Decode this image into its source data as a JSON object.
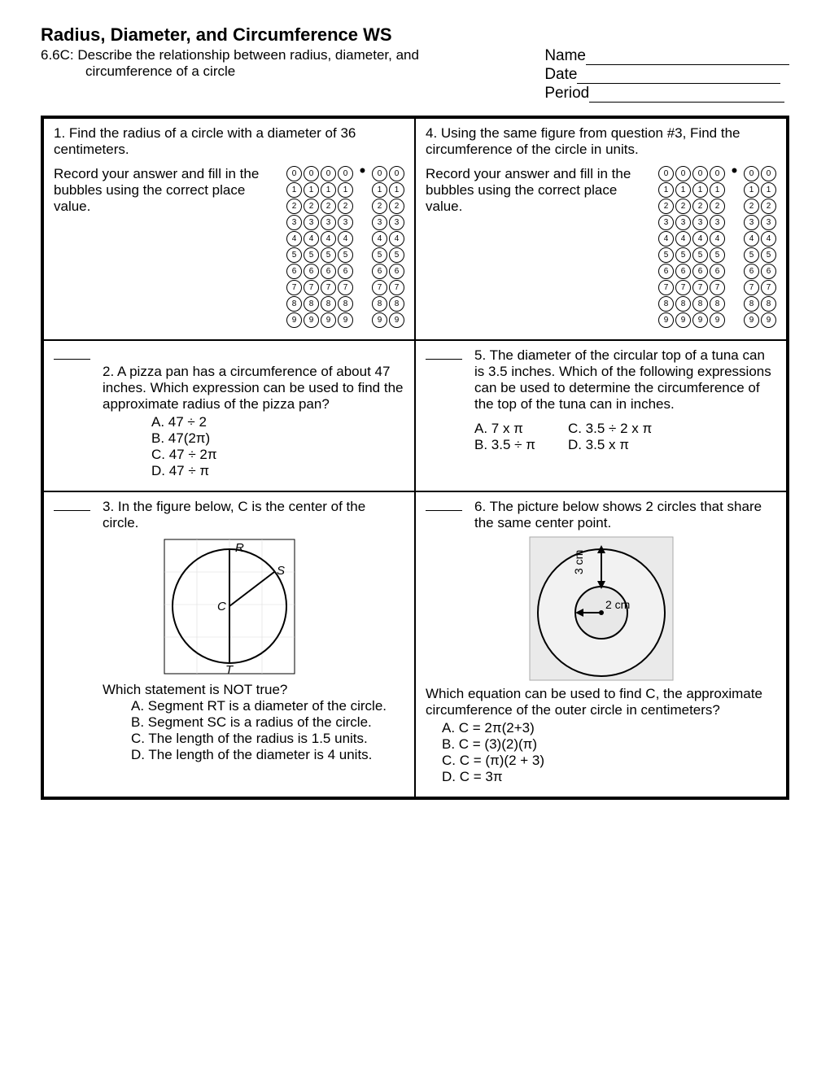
{
  "title": "Radius, Diameter, and Circumference WS",
  "standard_line1": "6.6C:  Describe the relationship between radius, diameter, and",
  "standard_line2": "circumference of a circle",
  "name_label": "Name",
  "date_label": "Date",
  "period_label": "Period",
  "q1": {
    "prompt": "1.  Find the radius of a circle with a diameter of 36 centimeters.",
    "instruction": "Record your answer and fill in the bubbles using the correct place value."
  },
  "q2": {
    "prompt": "2.  A pizza pan has a circumference of about 47 inches.  Which expression can be used to find the approximate radius of the pizza pan?",
    "a": "A.  47 ÷ 2",
    "b": "B.  47(2π)",
    "c": "C.  47 ÷ 2π",
    "d": "D.  47 ÷ π"
  },
  "q3": {
    "prompt": "3.  In the figure below, C is the center of the circle.",
    "labels": {
      "R": "R",
      "S": "S",
      "C": "C",
      "T": "T"
    },
    "follow": "Which statement is NOT true?",
    "a": "A.  Segment RT is a diameter of the circle.",
    "b": "B.  Segment SC is a radius of the circle.",
    "c": "C.  The length of the radius is 1.5 units.",
    "d": "D.  The length of the diameter is 4 units."
  },
  "q4": {
    "prompt": "4.  Using the same figure from question #3, Find the circumference of the circle in units.",
    "instruction": "Record your answer and fill in the bubbles using the correct place value."
  },
  "q5": {
    "prompt": "5.  The diameter of the circular top of a tuna can is 3.5 inches.  Which of the following expressions can be used to determine the circumference of the top of the tuna can in inches.",
    "a": "A.  7 x π",
    "b": "B.  3.5 ÷ π",
    "c": "C.  3.5 ÷ 2 x π",
    "d": "D.  3.5 x π"
  },
  "q6": {
    "prompt": "6.  The picture below shows 2 circles that share the same center point.",
    "label3": "3 cm",
    "label2": "2 cm",
    "follow": "Which equation can be used to find C, the approximate circumference of the outer circle in centimeters?",
    "a": "A.  C = 2π(2+3)",
    "b": "B.  C = (3)(2)(π)",
    "c": "C.  C = (π)(2 + 3)",
    "d": "D.  C = 3π"
  },
  "bubble_digits": [
    "0",
    "1",
    "2",
    "3",
    "4",
    "5",
    "6",
    "7",
    "8",
    "9"
  ]
}
